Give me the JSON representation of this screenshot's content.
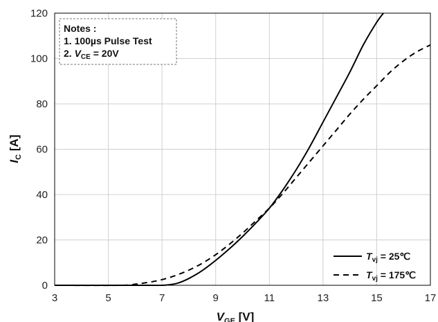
{
  "chart_data": {
    "type": "line",
    "xlabel": {
      "main": "V",
      "sub": "GE",
      "unit": " [V]"
    },
    "ylabel": {
      "main": "I",
      "sub": "C",
      "unit": " [A]"
    },
    "xlim": [
      3,
      17
    ],
    "ylim": [
      0,
      120
    ],
    "xticks": [
      3,
      5,
      7,
      9,
      11,
      13,
      15,
      17
    ],
    "yticks": [
      0,
      20,
      40,
      60,
      80,
      100,
      120
    ],
    "grid": true,
    "legend_position": "bottom-right",
    "notes": {
      "title": "Notes :",
      "line1": "1. 100µs Pulse Test",
      "line2_prefix": "2. ",
      "line2_main": "V",
      "line2_sub": "CE",
      "line2_suffix": " = 20V"
    },
    "series": [
      {
        "name": {
          "main": "T",
          "sub": "vj",
          "suffix": " = 25℃"
        },
        "dash": "solid",
        "x": [
          3,
          6.5,
          7,
          7.3,
          7.6,
          8,
          8.5,
          9,
          9.5,
          10,
          10.5,
          11,
          11.5,
          12,
          12.5,
          13,
          13.5,
          14,
          14.5,
          15,
          15.25
        ],
        "y": [
          0,
          0,
          0,
          0.3,
          1,
          3,
          6.5,
          11,
          16,
          21.5,
          27.5,
          34,
          42,
          51,
          61,
          72,
          83,
          94,
          106,
          116,
          120
        ]
      },
      {
        "name": {
          "main": "T",
          "sub": "vj",
          "suffix": " = 175℃"
        },
        "dash": "dashed",
        "x": [
          3,
          5.5,
          6,
          6.5,
          7,
          7.5,
          8,
          8.5,
          9,
          9.5,
          10,
          10.5,
          11,
          11.5,
          12,
          12.5,
          13,
          13.5,
          14,
          14.5,
          15,
          15.5,
          16,
          16.5,
          17
        ],
        "y": [
          0,
          0,
          0.5,
          1.3,
          2.5,
          4.3,
          6.7,
          9.7,
          13.5,
          18,
          23,
          28.5,
          34,
          40.5,
          47.5,
          54.5,
          61.5,
          68.5,
          75.5,
          82,
          88,
          94,
          99,
          103,
          106
        ]
      }
    ]
  }
}
